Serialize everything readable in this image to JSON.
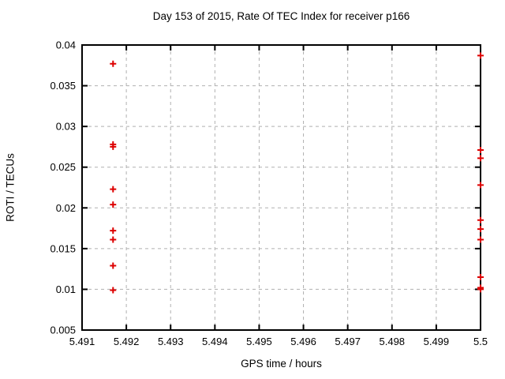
{
  "window": {
    "background": "#ffffff"
  },
  "chart_data": {
    "type": "scatter",
    "title": "Day 153 of 2015, Rate Of TEC Index for receiver p166",
    "xlabel": "GPS time / hours",
    "ylabel": "ROTI / TECUs",
    "xlim": [
      5.491,
      5.5
    ],
    "ylim": [
      0.005,
      0.04
    ],
    "x_ticks": [
      5.491,
      5.492,
      5.493,
      5.494,
      5.495,
      5.496,
      5.497,
      5.498,
      5.499,
      5.5
    ],
    "x_tick_labels": [
      "5.491",
      "5.492",
      "5.493",
      "5.494",
      "5.495",
      "5.496",
      "5.497",
      "5.498",
      "5.499",
      "5.5"
    ],
    "y_ticks": [
      0.005,
      0.01,
      0.015,
      0.02,
      0.025,
      0.03,
      0.035,
      0.04
    ],
    "y_tick_labels": [
      "0.005",
      "0.01",
      "0.015",
      "0.02",
      "0.025",
      "0.03",
      "0.035",
      "0.04"
    ],
    "grid": true,
    "grid_style": "dashed",
    "grid_color": "#b0b0b0",
    "border_color": "#000000",
    "legend": "none",
    "marker": "plus",
    "marker_color": "#dd0000",
    "series": [
      {
        "name": "ROTI",
        "points": [
          [
            5.4917,
            0.0377
          ],
          [
            5.4917,
            0.0278
          ],
          [
            5.4917,
            0.0275
          ],
          [
            5.4917,
            0.0223
          ],
          [
            5.4917,
            0.0204
          ],
          [
            5.4917,
            0.0172
          ],
          [
            5.4917,
            0.0161
          ],
          [
            5.4917,
            0.0129
          ],
          [
            5.4917,
            0.0099
          ],
          [
            5.5,
            0.0387
          ],
          [
            5.5,
            0.0271
          ],
          [
            5.5,
            0.0261
          ],
          [
            5.5,
            0.0228
          ],
          [
            5.5,
            0.0185
          ],
          [
            5.5,
            0.0174
          ],
          [
            5.5,
            0.0161
          ],
          [
            5.5,
            0.0115
          ],
          [
            5.5,
            0.0102
          ],
          [
            5.5,
            0.01
          ]
        ]
      }
    ]
  }
}
